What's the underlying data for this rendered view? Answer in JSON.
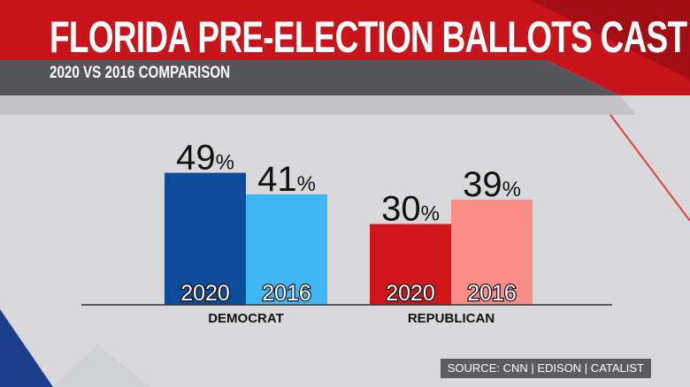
{
  "header": {
    "title": "FLORIDA PRE-ELECTION BALLOTS CAST",
    "subtitle": "2020 VS 2016 COMPARISON"
  },
  "footer": {
    "source": "SOURCE: CNN | EDISON | CATALIST"
  },
  "colors": {
    "dem_2020": "#0d4c9b",
    "dem_2016": "#3fb7f3",
    "rep_2020": "#d0161b",
    "rep_2016": "#fb8d88",
    "header_red": "#c8141b",
    "header_gray": "#55565a"
  },
  "chart_data": {
    "type": "bar",
    "categories": [
      "DEMOCRAT",
      "REPUBLICAN"
    ],
    "series": [
      {
        "name": "2020",
        "values": [
          49,
          30
        ]
      },
      {
        "name": "2016",
        "values": [
          41,
          39
        ]
      }
    ],
    "value_suffix": "%",
    "ylim": [
      0,
      60
    ],
    "grid": false
  }
}
